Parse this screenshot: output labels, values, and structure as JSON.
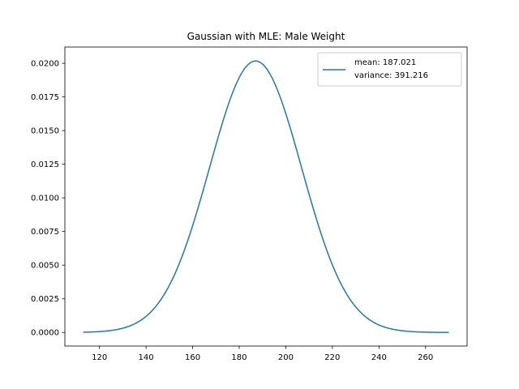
{
  "chart_data": {
    "type": "line",
    "title": "Gaussian with MLE: Male Weight",
    "xlabel": "",
    "ylabel": "",
    "xlim": [
      105.15,
      277.85
    ],
    "ylim": [
      -0.00101,
      0.02121
    ],
    "x_ticks": [
      120,
      140,
      160,
      180,
      200,
      220,
      240,
      260
    ],
    "x_tick_labels": [
      "120",
      "140",
      "160",
      "180",
      "200",
      "220",
      "240",
      "260"
    ],
    "y_ticks": [
      0.0,
      0.0025,
      0.005,
      0.0075,
      0.01,
      0.0125,
      0.015,
      0.0175,
      0.02
    ],
    "y_tick_labels": [
      "0.0000",
      "0.0025",
      "0.0050",
      "0.0075",
      "0.0100",
      "0.0125",
      "0.0150",
      "0.0175",
      "0.0200"
    ],
    "grid": false,
    "legend_placement": "top-right",
    "legend_lines": [
      "mean: 187.021",
      "variance: 391.216"
    ],
    "series": [
      {
        "distribution": "gaussian",
        "mean": 187.021,
        "variance": 391.216,
        "x_range": [
          113,
          270
        ],
        "color": "#1f77b4"
      }
    ]
  }
}
